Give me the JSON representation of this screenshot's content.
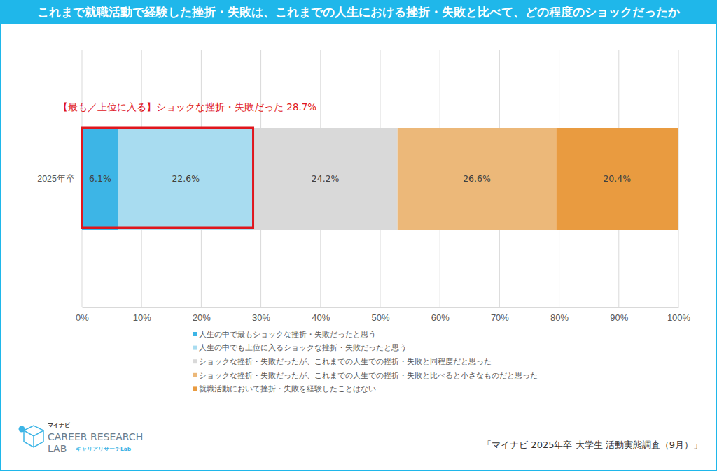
{
  "chart_data": {
    "type": "bar",
    "orientation": "horizontal",
    "stacked": true,
    "data_labels": true,
    "grid": true,
    "legend": "bottom",
    "title": "これまで就職活動で経験した挫折・失敗は、これまでの人生における挫折・失敗と比べて、どの程度のショックだったか",
    "categories": [
      "2025年卒"
    ],
    "series": [
      {
        "name": "人生の中で最もショックな挫折・失敗だったと思う",
        "color": "#3db5e6",
        "values": [
          6.1
        ],
        "value_labels": [
          "6.1%"
        ]
      },
      {
        "name": "人生の中でも上位に入るショックな挫折・失敗だったと思う",
        "color": "#a8dcf0",
        "values": [
          22.6
        ],
        "value_labels": [
          "22.6%"
        ]
      },
      {
        "name": "ショックな挫折・失敗だったが、これまでの人生での挫折・失敗と同程度だと思った",
        "color": "#d9d9d9",
        "values": [
          24.2
        ],
        "value_labels": [
          "24.2%"
        ]
      },
      {
        "name": "ショックな挫折・失敗だったが、これまでの人生での挫折・失敗と比べると小さなものだと思った",
        "color": "#ecb879",
        "values": [
          26.6
        ],
        "value_labels": [
          "26.6%"
        ]
      },
      {
        "name": "就職活動において挫折・失敗を経験したことはない",
        "color": "#e99b40",
        "values": [
          20.4
        ],
        "value_labels": [
          "20.4%"
        ]
      }
    ],
    "xlim": [
      0,
      100
    ],
    "xticks": [
      {
        "value": 0,
        "label": "0%"
      },
      {
        "value": 10,
        "label": "10%"
      },
      {
        "value": 20,
        "label": "20%"
      },
      {
        "value": 30,
        "label": "30%"
      },
      {
        "value": 40,
        "label": "40%"
      },
      {
        "value": 50,
        "label": "50%"
      },
      {
        "value": 60,
        "label": "60%"
      },
      {
        "value": 70,
        "label": "70%"
      },
      {
        "value": 80,
        "label": "80%"
      },
      {
        "value": 90,
        "label": "90%"
      },
      {
        "value": 100,
        "label": "100%"
      }
    ],
    "annotations": [
      {
        "text": "【最も／上位に入る】ショックな挫折・失敗だった 28.7%",
        "value": 28.7
      }
    ]
  },
  "source": "「マイナビ 2025年卒 大学生 活動実態調査（9月）」",
  "logo": {
    "brand": "マイナビ",
    "name": "CAREER RESEARCH",
    "sub": "LAB",
    "kana": "キャリアリサーチLab"
  }
}
